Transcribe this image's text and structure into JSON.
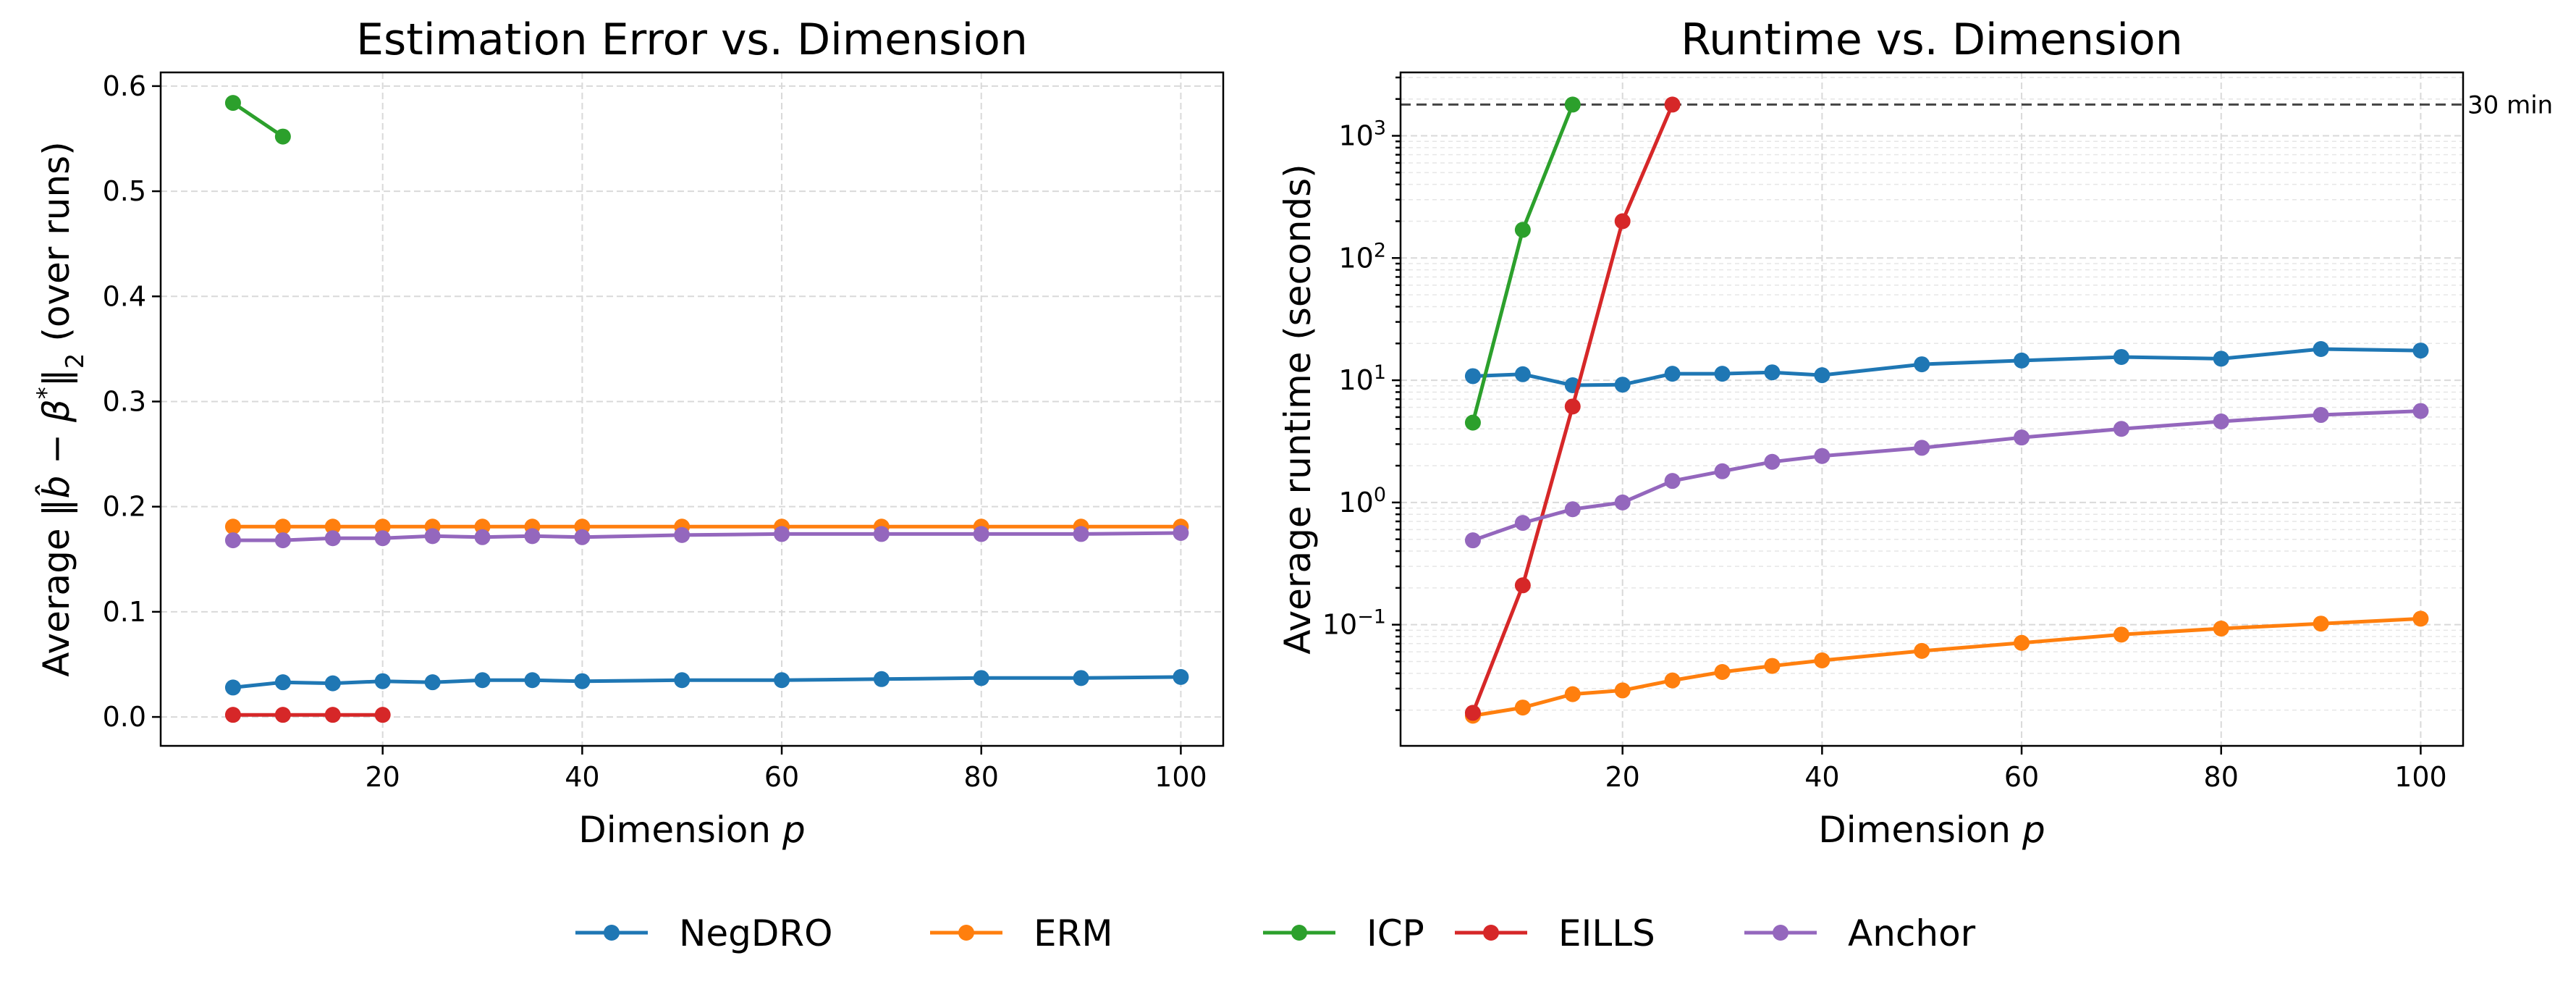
{
  "legend": [
    {
      "name": "NegDRO",
      "color": "#1f77b4"
    },
    {
      "name": "ERM",
      "color": "#ff7f0e"
    },
    {
      "name": "ICP",
      "color": "#2ca02c"
    },
    {
      "name": "EILLS",
      "color": "#d62728"
    },
    {
      "name": "Anchor",
      "color": "#9467bd"
    }
  ],
  "chart_data": [
    {
      "type": "line",
      "title": "Estimation Error vs. Dimension",
      "xlabel": "Dimension p",
      "ylabel": "Average ‖b̂ − β*‖₂ (over runs)",
      "xlim": [
        -2.25,
        104.25
      ],
      "ylim": [
        -0.0275,
        0.613
      ],
      "yscale": "linear",
      "grid": true,
      "xticks": [
        20,
        40,
        60,
        80,
        100
      ],
      "xtick_labels": [
        "20",
        "40",
        "60",
        "80",
        "100"
      ],
      "yticks": [
        0.0,
        0.1,
        0.2,
        0.3,
        0.4,
        0.5,
        0.6
      ],
      "ytick_labels": [
        "0.0",
        "0.1",
        "0.2",
        "0.3",
        "0.4",
        "0.5",
        "0.6"
      ],
      "series": [
        {
          "name": "NegDRO",
          "color": "#1f77b4",
          "x": [
            5,
            10,
            15,
            20,
            25,
            30,
            35,
            40,
            50,
            60,
            70,
            80,
            90,
            100
          ],
          "y": [
            0.028,
            0.033,
            0.032,
            0.034,
            0.033,
            0.035,
            0.035,
            0.034,
            0.035,
            0.035,
            0.036,
            0.037,
            0.037,
            0.038
          ]
        },
        {
          "name": "ERM",
          "color": "#ff7f0e",
          "x": [
            5,
            10,
            15,
            20,
            25,
            30,
            35,
            40,
            50,
            60,
            70,
            80,
            90,
            100
          ],
          "y": [
            0.181,
            0.181,
            0.181,
            0.181,
            0.181,
            0.181,
            0.181,
            0.181,
            0.181,
            0.181,
            0.181,
            0.181,
            0.181,
            0.181
          ]
        },
        {
          "name": "ICP",
          "color": "#2ca02c",
          "x": [
            5,
            10
          ],
          "y": [
            0.584,
            0.552
          ]
        },
        {
          "name": "EILLS",
          "color": "#d62728",
          "x": [
            5,
            10,
            15,
            20
          ],
          "y": [
            0.002,
            0.002,
            0.002,
            0.002
          ]
        },
        {
          "name": "Anchor",
          "color": "#9467bd",
          "x": [
            5,
            10,
            15,
            20,
            25,
            30,
            35,
            40,
            50,
            60,
            70,
            80,
            90,
            100
          ],
          "y": [
            0.168,
            0.168,
            0.17,
            0.17,
            0.172,
            0.171,
            0.172,
            0.171,
            0.173,
            0.174,
            0.174,
            0.174,
            0.174,
            0.175
          ]
        }
      ]
    },
    {
      "type": "line",
      "title": "Runtime vs. Dimension",
      "xlabel": "Dimension p",
      "ylabel": "Average runtime (seconds)",
      "xlim": [
        -2.25,
        104.25
      ],
      "ylim": [
        0.0102,
        3300
      ],
      "yscale": "log",
      "grid": true,
      "xticks": [
        20,
        40,
        60,
        80,
        100
      ],
      "xtick_labels": [
        "20",
        "40",
        "60",
        "80",
        "100"
      ],
      "yticks": [
        0.1,
        1,
        10,
        100,
        1000
      ],
      "ytick_labels": [
        "10",
        "10",
        "10",
        "10",
        "10"
      ],
      "ytick_exponents": [
        "−1",
        "0",
        "1",
        "2",
        "3"
      ],
      "hline": {
        "y": 1800,
        "label": "30 min",
        "color": "#444444"
      },
      "series": [
        {
          "name": "NegDRO",
          "color": "#1f77b4",
          "x": [
            5,
            10,
            15,
            20,
            25,
            30,
            35,
            40,
            50,
            60,
            70,
            80,
            90,
            100
          ],
          "y": [
            10.8,
            11.2,
            9.1,
            9.2,
            11.3,
            11.3,
            11.6,
            11.0,
            13.5,
            14.5,
            15.5,
            15.0,
            18.0,
            17.5
          ]
        },
        {
          "name": "ERM",
          "color": "#ff7f0e",
          "x": [
            5,
            10,
            15,
            20,
            25,
            30,
            35,
            40,
            50,
            60,
            70,
            80,
            90,
            100
          ],
          "y": [
            0.018,
            0.021,
            0.027,
            0.029,
            0.035,
            0.041,
            0.046,
            0.051,
            0.061,
            0.071,
            0.083,
            0.093,
            0.102,
            0.112
          ]
        },
        {
          "name": "ICP",
          "color": "#2ca02c",
          "x": [
            5,
            10,
            15
          ],
          "y": [
            4.5,
            170,
            1800
          ]
        },
        {
          "name": "EILLS",
          "color": "#d62728",
          "x": [
            5,
            10,
            15,
            20,
            25
          ],
          "y": [
            0.019,
            0.21,
            6.1,
            200,
            1800
          ]
        },
        {
          "name": "Anchor",
          "color": "#9467bd",
          "x": [
            5,
            10,
            15,
            20,
            25,
            30,
            35,
            40,
            50,
            60,
            70,
            80,
            90,
            100
          ],
          "y": [
            0.49,
            0.68,
            0.88,
            1.0,
            1.5,
            1.8,
            2.15,
            2.4,
            2.8,
            3.4,
            4.0,
            4.6,
            5.2,
            5.6
          ]
        }
      ]
    }
  ]
}
